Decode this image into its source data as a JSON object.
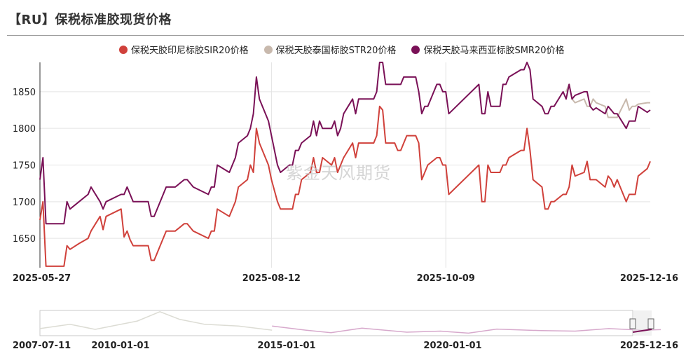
{
  "header": {
    "title": "【RU】保税标准胶现货价格"
  },
  "watermark": "紫金天风期货",
  "colors": {
    "sir": "#d0413b",
    "str": "#c8b9ad",
    "smr": "#7a1157",
    "grid": "#e3e3e3"
  },
  "navigator": {
    "labels": [
      "2007-07-11",
      "2010-01-01",
      "2015-01-01",
      "2020-01-01",
      "2025-12-16"
    ]
  },
  "chart_data": {
    "type": "line",
    "title": "【RU】保税标准胶现货价格",
    "xlabel": "",
    "ylabel": "",
    "ylim": [
      1610,
      1890
    ],
    "yticks": [
      1650,
      1700,
      1750,
      1800,
      1850
    ],
    "x_tick_labels": [
      "2025-05-27",
      "2025-08-12",
      "2025-10-09",
      "2025-12-16"
    ],
    "x_start": "2025-05-27",
    "x_end": "2025-12-16",
    "grid": true,
    "legend_position": "top",
    "series": [
      {
        "name": "保税天胶印尼标胶SIR20价格",
        "key": "sir",
        "points": [
          [
            "2025-05-27",
            1675
          ],
          [
            "2025-05-28",
            1700
          ],
          [
            "2025-05-29",
            1612
          ],
          [
            "2025-06-04",
            1612
          ],
          [
            "2025-06-05",
            1640
          ],
          [
            "2025-06-06",
            1635
          ],
          [
            "2025-06-09",
            1643
          ],
          [
            "2025-06-12",
            1650
          ],
          [
            "2025-06-13",
            1660
          ],
          [
            "2025-06-16",
            1680
          ],
          [
            "2025-06-17",
            1662
          ],
          [
            "2025-06-18",
            1680
          ],
          [
            "2025-06-23",
            1690
          ],
          [
            "2025-06-24",
            1652
          ],
          [
            "2025-06-25",
            1660
          ],
          [
            "2025-06-26",
            1648
          ],
          [
            "2025-06-27",
            1640
          ],
          [
            "2025-07-02",
            1640
          ],
          [
            "2025-07-03",
            1620
          ],
          [
            "2025-07-04",
            1620
          ],
          [
            "2025-07-07",
            1650
          ],
          [
            "2025-07-08",
            1660
          ],
          [
            "2025-07-11",
            1660
          ],
          [
            "2025-07-14",
            1670
          ],
          [
            "2025-07-15",
            1670
          ],
          [
            "2025-07-17",
            1660
          ],
          [
            "2025-07-22",
            1650
          ],
          [
            "2025-07-23",
            1660
          ],
          [
            "2025-07-24",
            1660
          ],
          [
            "2025-07-25",
            1690
          ],
          [
            "2025-07-29",
            1680
          ],
          [
            "2025-07-30",
            1690
          ],
          [
            "2025-07-31",
            1700
          ],
          [
            "2025-08-01",
            1720
          ],
          [
            "2025-08-04",
            1730
          ],
          [
            "2025-08-05",
            1750
          ],
          [
            "2025-08-06",
            1740
          ],
          [
            "2025-08-07",
            1800
          ],
          [
            "2025-08-08",
            1780
          ],
          [
            "2025-08-11",
            1750
          ],
          [
            "2025-08-12",
            1730
          ],
          [
            "2025-08-14",
            1700
          ],
          [
            "2025-08-15",
            1690
          ],
          [
            "2025-08-18",
            1690
          ],
          [
            "2025-08-19",
            1690
          ],
          [
            "2025-08-20",
            1710
          ],
          [
            "2025-08-21",
            1710
          ],
          [
            "2025-08-22",
            1730
          ],
          [
            "2025-08-25",
            1740
          ],
          [
            "2025-08-26",
            1760
          ],
          [
            "2025-08-27",
            1740
          ],
          [
            "2025-08-28",
            1740
          ],
          [
            "2025-08-29",
            1760
          ],
          [
            "2025-09-01",
            1750
          ],
          [
            "2025-09-02",
            1760
          ],
          [
            "2025-09-03",
            1740
          ],
          [
            "2025-09-04",
            1750
          ],
          [
            "2025-09-05",
            1760
          ],
          [
            "2025-09-08",
            1780
          ],
          [
            "2025-09-09",
            1760
          ],
          [
            "2025-09-10",
            1780
          ],
          [
            "2025-09-11",
            1780
          ],
          [
            "2025-09-12",
            1780
          ],
          [
            "2025-09-15",
            1780
          ],
          [
            "2025-09-16",
            1790
          ],
          [
            "2025-09-17",
            1830
          ],
          [
            "2025-09-18",
            1825
          ],
          [
            "2025-09-19",
            1780
          ],
          [
            "2025-09-22",
            1780
          ],
          [
            "2025-09-23",
            1770
          ],
          [
            "2025-09-24",
            1770
          ],
          [
            "2025-09-25",
            1780
          ],
          [
            "2025-09-26",
            1790
          ],
          [
            "2025-09-29",
            1790
          ],
          [
            "2025-09-30",
            1780
          ],
          [
            "2025-10-01",
            1730
          ],
          [
            "2025-10-02",
            1740
          ],
          [
            "2025-10-03",
            1750
          ],
          [
            "2025-10-06",
            1760
          ],
          [
            "2025-10-07",
            1760
          ],
          [
            "2025-10-08",
            1750
          ],
          [
            "2025-10-09",
            1750
          ],
          [
            "2025-10-10",
            1710
          ],
          [
            "2025-10-20",
            1750
          ],
          [
            "2025-10-21",
            1700
          ],
          [
            "2025-10-22",
            1700
          ],
          [
            "2025-10-23",
            1750
          ],
          [
            "2025-10-24",
            1740
          ],
          [
            "2025-10-27",
            1740
          ],
          [
            "2025-10-28",
            1750
          ],
          [
            "2025-10-29",
            1750
          ],
          [
            "2025-10-30",
            1760
          ],
          [
            "2025-11-03",
            1770
          ],
          [
            "2025-11-04",
            1770
          ],
          [
            "2025-11-05",
            1800
          ],
          [
            "2025-11-06",
            1770
          ],
          [
            "2025-11-07",
            1730
          ],
          [
            "2025-11-10",
            1720
          ],
          [
            "2025-11-11",
            1690
          ],
          [
            "2025-11-12",
            1690
          ],
          [
            "2025-11-13",
            1700
          ],
          [
            "2025-11-14",
            1700
          ],
          [
            "2025-11-17",
            1710
          ],
          [
            "2025-11-18",
            1710
          ],
          [
            "2025-11-19",
            1720
          ],
          [
            "2025-11-20",
            1750
          ],
          [
            "2025-11-21",
            1735
          ],
          [
            "2025-11-24",
            1740
          ],
          [
            "2025-11-25",
            1755
          ],
          [
            "2025-11-26",
            1730
          ],
          [
            "2025-11-27",
            1730
          ],
          [
            "2025-11-28",
            1730
          ],
          [
            "2025-12-01",
            1720
          ],
          [
            "2025-12-02",
            1735
          ],
          [
            "2025-12-03",
            1730
          ],
          [
            "2025-12-04",
            1720
          ],
          [
            "2025-12-05",
            1730
          ],
          [
            "2025-12-08",
            1700
          ],
          [
            "2025-12-09",
            1710
          ],
          [
            "2025-12-10",
            1710
          ],
          [
            "2025-12-11",
            1710
          ],
          [
            "2025-12-12",
            1735
          ],
          [
            "2025-12-15",
            1745
          ],
          [
            "2025-12-16",
            1755
          ]
        ]
      },
      {
        "name": "保税天胶泰国标胶STR20价格",
        "key": "str",
        "points": [
          [
            "2025-11-18",
            1850
          ],
          [
            "2025-11-19",
            1860
          ],
          [
            "2025-11-20",
            1840
          ],
          [
            "2025-11-21",
            1835
          ],
          [
            "2025-11-24",
            1840
          ],
          [
            "2025-11-25",
            1830
          ],
          [
            "2025-11-26",
            1830
          ],
          [
            "2025-11-27",
            1840
          ],
          [
            "2025-11-28",
            1835
          ],
          [
            "2025-12-01",
            1830
          ],
          [
            "2025-12-02",
            1815
          ],
          [
            "2025-12-03",
            1815
          ],
          [
            "2025-12-04",
            1815
          ],
          [
            "2025-12-05",
            1815
          ],
          [
            "2025-12-08",
            1840
          ],
          [
            "2025-12-09",
            1825
          ],
          [
            "2025-12-10",
            1830
          ],
          [
            "2025-12-11",
            1830
          ],
          [
            "2025-12-12",
            1833
          ],
          [
            "2025-12-15",
            1835
          ],
          [
            "2025-12-16",
            1835
          ]
        ]
      },
      {
        "name": "保税天胶马来西亚标胶SMR20价格",
        "key": "smr",
        "points": [
          [
            "2025-05-27",
            1730
          ],
          [
            "2025-05-28",
            1760
          ],
          [
            "2025-05-29",
            1670
          ],
          [
            "2025-06-04",
            1670
          ],
          [
            "2025-06-05",
            1700
          ],
          [
            "2025-06-06",
            1690
          ],
          [
            "2025-06-09",
            1700
          ],
          [
            "2025-06-12",
            1710
          ],
          [
            "2025-06-13",
            1720
          ],
          [
            "2025-06-16",
            1700
          ],
          [
            "2025-06-17",
            1690
          ],
          [
            "2025-06-18",
            1700
          ],
          [
            "2025-06-23",
            1710
          ],
          [
            "2025-06-24",
            1710
          ],
          [
            "2025-06-25",
            1720
          ],
          [
            "2025-06-26",
            1710
          ],
          [
            "2025-06-27",
            1700
          ],
          [
            "2025-07-02",
            1700
          ],
          [
            "2025-07-03",
            1680
          ],
          [
            "2025-07-04",
            1680
          ],
          [
            "2025-07-07",
            1710
          ],
          [
            "2025-07-08",
            1720
          ],
          [
            "2025-07-11",
            1720
          ],
          [
            "2025-07-14",
            1730
          ],
          [
            "2025-07-15",
            1730
          ],
          [
            "2025-07-17",
            1720
          ],
          [
            "2025-07-22",
            1710
          ],
          [
            "2025-07-23",
            1720
          ],
          [
            "2025-07-24",
            1720
          ],
          [
            "2025-07-25",
            1750
          ],
          [
            "2025-07-29",
            1740
          ],
          [
            "2025-07-30",
            1750
          ],
          [
            "2025-07-31",
            1760
          ],
          [
            "2025-08-01",
            1780
          ],
          [
            "2025-08-04",
            1790
          ],
          [
            "2025-08-05",
            1800
          ],
          [
            "2025-08-06",
            1820
          ],
          [
            "2025-08-07",
            1870
          ],
          [
            "2025-08-08",
            1840
          ],
          [
            "2025-08-11",
            1810
          ],
          [
            "2025-08-12",
            1790
          ],
          [
            "2025-08-14",
            1750
          ],
          [
            "2025-08-15",
            1740
          ],
          [
            "2025-08-18",
            1750
          ],
          [
            "2025-08-19",
            1750
          ],
          [
            "2025-08-20",
            1770
          ],
          [
            "2025-08-21",
            1770
          ],
          [
            "2025-08-22",
            1780
          ],
          [
            "2025-08-25",
            1790
          ],
          [
            "2025-08-26",
            1810
          ],
          [
            "2025-08-27",
            1790
          ],
          [
            "2025-08-28",
            1810
          ],
          [
            "2025-08-29",
            1800
          ],
          [
            "2025-09-01",
            1800
          ],
          [
            "2025-09-02",
            1810
          ],
          [
            "2025-09-03",
            1790
          ],
          [
            "2025-09-04",
            1800
          ],
          [
            "2025-09-05",
            1820
          ],
          [
            "2025-09-08",
            1840
          ],
          [
            "2025-09-09",
            1820
          ],
          [
            "2025-09-10",
            1840
          ],
          [
            "2025-09-11",
            1840
          ],
          [
            "2025-09-12",
            1840
          ],
          [
            "2025-09-15",
            1840
          ],
          [
            "2025-09-16",
            1850
          ],
          [
            "2025-09-17",
            1890
          ],
          [
            "2025-09-18",
            1890
          ],
          [
            "2025-09-19",
            1860
          ],
          [
            "2025-09-22",
            1860
          ],
          [
            "2025-09-23",
            1860
          ],
          [
            "2025-09-24",
            1860
          ],
          [
            "2025-09-25",
            1870
          ],
          [
            "2025-09-26",
            1870
          ],
          [
            "2025-09-29",
            1870
          ],
          [
            "2025-09-30",
            1850
          ],
          [
            "2025-10-01",
            1820
          ],
          [
            "2025-10-02",
            1830
          ],
          [
            "2025-10-03",
            1830
          ],
          [
            "2025-10-06",
            1860
          ],
          [
            "2025-10-07",
            1860
          ],
          [
            "2025-10-08",
            1850
          ],
          [
            "2025-10-09",
            1850
          ],
          [
            "2025-10-10",
            1820
          ],
          [
            "2025-10-20",
            1860
          ],
          [
            "2025-10-21",
            1820
          ],
          [
            "2025-10-22",
            1820
          ],
          [
            "2025-10-23",
            1850
          ],
          [
            "2025-10-24",
            1830
          ],
          [
            "2025-10-27",
            1830
          ],
          [
            "2025-10-28",
            1860
          ],
          [
            "2025-10-29",
            1860
          ],
          [
            "2025-10-30",
            1870
          ],
          [
            "2025-11-03",
            1880
          ],
          [
            "2025-11-04",
            1880
          ],
          [
            "2025-11-05",
            1890
          ],
          [
            "2025-11-06",
            1880
          ],
          [
            "2025-11-07",
            1840
          ],
          [
            "2025-11-10",
            1830
          ],
          [
            "2025-11-11",
            1820
          ],
          [
            "2025-11-12",
            1820
          ],
          [
            "2025-11-13",
            1830
          ],
          [
            "2025-11-14",
            1830
          ],
          [
            "2025-11-17",
            1850
          ],
          [
            "2025-11-18",
            1840
          ],
          [
            "2025-11-19",
            1860
          ],
          [
            "2025-11-20",
            1840
          ],
          [
            "2025-11-21",
            1845
          ],
          [
            "2025-11-24",
            1850
          ],
          [
            "2025-11-25",
            1850
          ],
          [
            "2025-11-26",
            1830
          ],
          [
            "2025-11-27",
            1825
          ],
          [
            "2025-11-28",
            1828
          ],
          [
            "2025-12-01",
            1820
          ],
          [
            "2025-12-02",
            1830
          ],
          [
            "2025-12-03",
            1825
          ],
          [
            "2025-12-04",
            1820
          ],
          [
            "2025-12-05",
            1820
          ],
          [
            "2025-12-08",
            1800
          ],
          [
            "2025-12-09",
            1810
          ],
          [
            "2025-12-10",
            1810
          ],
          [
            "2025-12-11",
            1810
          ],
          [
            "2025-12-12",
            1830
          ],
          [
            "2025-12-15",
            1822
          ],
          [
            "2025-12-16",
            1825
          ]
        ]
      }
    ]
  }
}
